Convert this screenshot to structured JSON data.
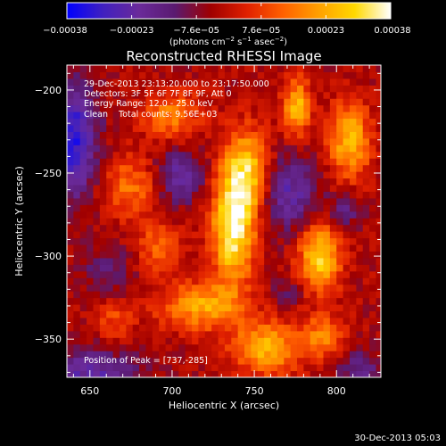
{
  "chart_data": {
    "type": "heatmap",
    "title": "Reconstructed RHESSI Image",
    "xlabel": "Heliocentric X (arcsec)",
    "ylabel": "Heliocentric Y (arcsec)",
    "xlim": [
      636,
      827
    ],
    "ylim": [
      -373,
      -185
    ],
    "x_ticks": [
      650,
      700,
      750,
      800
    ],
    "y_ticks": [
      -350,
      -300,
      -250,
      -200
    ],
    "x_tick_labels": [
      "650",
      "700",
      "750",
      "800"
    ],
    "y_tick_labels": [
      "−350",
      "−300",
      "−250",
      "−200"
    ],
    "colorbar": {
      "range": [
        -0.00038,
        0.00038
      ],
      "tick_labels": [
        "−0.00038",
        "−0.00023",
        "−7.6e−05",
        "7.6e−05",
        "0.00023",
        "0.00038"
      ],
      "colors": [
        "#0000ff",
        "#4020c0",
        "#6a2a9a",
        "#5a1a70",
        "#a00000",
        "#e02000",
        "#ff6000",
        "#ffa000",
        "#ffd800",
        "#ffffff"
      ]
    },
    "unit_label": {
      "pre": "(photons cm",
      "sup1": "−2",
      "mid1": " s",
      "sup2": "−1",
      "mid2": " asec",
      "sup3": "−2",
      "post": ")"
    },
    "annotations": [
      "29-Dec-2013 23:13:20.000 to 23:17:50.000",
      "Detectors: 3F 5F 6F 7F 8F 9F, Att 0",
      "Energy Range: 12.0 - 25.0 keV",
      "Clean    Total counts: 9.56E+03"
    ],
    "peak_label": "Position of Peak = [737,-285]",
    "peak": [
      737,
      -285
    ],
    "sources": [
      {
        "x": 737,
        "y": -285,
        "sx": 9,
        "sy": 22,
        "amp": 0.00038
      },
      {
        "x": 745,
        "y": -250,
        "sx": 10,
        "sy": 18,
        "amp": 0.00033
      },
      {
        "x": 790,
        "y": -300,
        "sx": 9,
        "sy": 14,
        "amp": 0.00033
      },
      {
        "x": 776,
        "y": -210,
        "sx": 6,
        "sy": 12,
        "amp": 0.00028
      },
      {
        "x": 808,
        "y": -230,
        "sx": 9,
        "sy": 16,
        "amp": 0.00028
      },
      {
        "x": 718,
        "y": -330,
        "sx": 18,
        "sy": 10,
        "amp": 0.00025
      },
      {
        "x": 757,
        "y": -355,
        "sx": 14,
        "sy": 11,
        "amp": 0.00028
      },
      {
        "x": 675,
        "y": -258,
        "sx": 12,
        "sy": 13,
        "amp": 0.00018
      },
      {
        "x": 692,
        "y": -295,
        "sx": 10,
        "sy": 10,
        "amp": 0.00016
      },
      {
        "x": 700,
        "y": -215,
        "sx": 12,
        "sy": 10,
        "amp": 0.0002
      },
      {
        "x": 792,
        "y": -348,
        "sx": 9,
        "sy": 9,
        "amp": 0.0002
      },
      {
        "x": 665,
        "y": -340,
        "sx": 8,
        "sy": 10,
        "amp": 0.00012
      }
    ],
    "holes": [
      {
        "x": 640,
        "y": -230,
        "sx": 10,
        "sy": 24,
        "amp": -0.0003
      },
      {
        "x": 704,
        "y": -252,
        "sx": 11,
        "sy": 11,
        "amp": -0.00018
      },
      {
        "x": 770,
        "y": -262,
        "sx": 13,
        "sy": 16,
        "amp": -0.0002
      },
      {
        "x": 805,
        "y": -272,
        "sx": 7,
        "sy": 7,
        "amp": -0.00014
      },
      {
        "x": 650,
        "y": -372,
        "sx": 22,
        "sy": 12,
        "amp": -0.0002
      },
      {
        "x": 662,
        "y": -308,
        "sx": 10,
        "sy": 10,
        "amp": -0.00012
      },
      {
        "x": 815,
        "y": -370,
        "sx": 10,
        "sy": 10,
        "amp": -0.00014
      },
      {
        "x": 770,
        "y": -322,
        "sx": 6,
        "sy": 6,
        "amp": -0.0001
      }
    ]
  },
  "footer": {
    "timestamp": "30-Dec-2013 05:03"
  }
}
